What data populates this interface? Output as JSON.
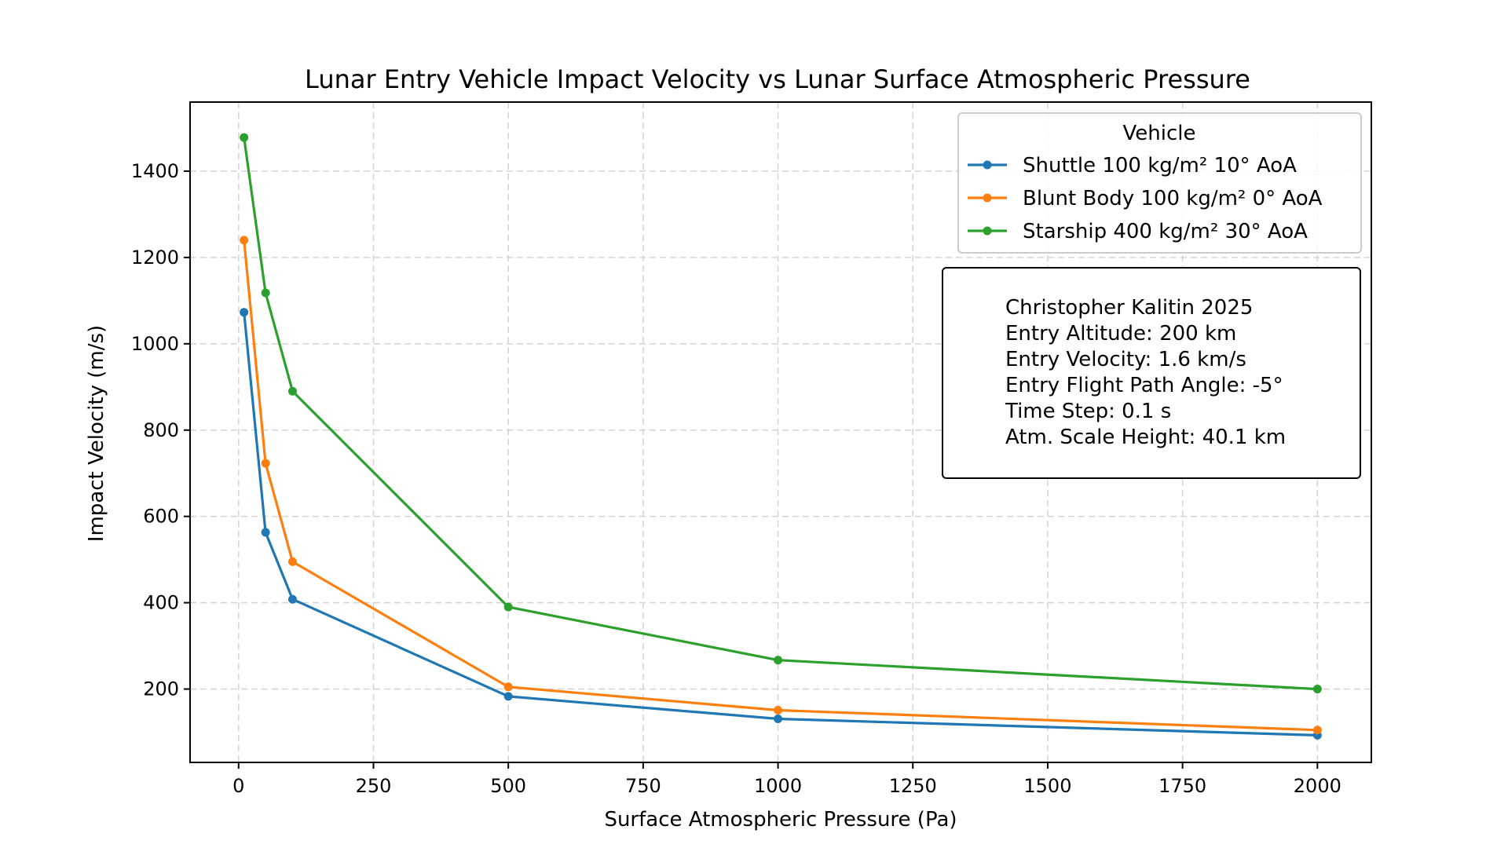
{
  "chart_data": {
    "type": "line",
    "title": "Lunar Entry Vehicle Impact Velocity vs Lunar Surface Atmospheric Pressure",
    "xlabel": "Surface Atmospheric Pressure (Pa)",
    "ylabel": "Impact Velocity (m/s)",
    "xlim": [
      -90,
      2100
    ],
    "ylim": [
      30,
      1560
    ],
    "xticks": [
      0,
      250,
      500,
      750,
      1000,
      1250,
      1500,
      1750,
      2000
    ],
    "yticks": [
      200,
      400,
      600,
      800,
      1000,
      1200,
      1400
    ],
    "x": [
      10,
      50,
      100,
      500,
      1000,
      2000
    ],
    "grid": true,
    "legend": {
      "title": "Vehicle",
      "placement": "top-right"
    },
    "series": [
      {
        "name": "Shuttle 100 kg/m² 10° AoA",
        "color": "#1f77b4",
        "values": [
          1073,
          563,
          408,
          183,
          131,
          93
        ]
      },
      {
        "name": "Blunt Body 100 kg/m² 0° AoA",
        "color": "#ff7f0e",
        "values": [
          1240,
          723,
          495,
          205,
          151,
          105
        ]
      },
      {
        "name": "Starship 400 kg/m² 30° AoA",
        "color": "#2ca02c",
        "values": [
          1478,
          1118,
          890,
          390,
          267,
          200
        ]
      }
    ],
    "annotation": [
      "Christopher Kalitin 2025",
      "Entry Altitude: 200 km",
      "Entry Velocity: 1.6 km/s",
      "Entry Flight Path Angle: -5°",
      "Time Step: 0.1 s",
      "Atm. Scale Height: 40.1 km"
    ]
  }
}
